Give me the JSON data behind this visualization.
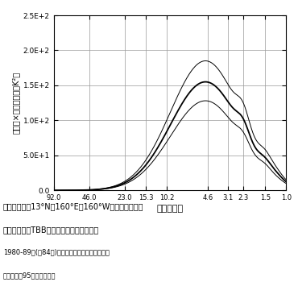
{
  "xlabel": "周期（日）",
  "ylabel": "周波数×パワー密度（K²）",
  "ylim": [
    0,
    250
  ],
  "yticks": [
    0,
    50,
    100,
    150,
    200,
    250
  ],
  "ytick_labels": [
    "0.0",
    "5.0E+1",
    "1.0E+2",
    "1.5E+2",
    "2.0E+2",
    "2.5E+2"
  ],
  "xtick_periods": [
    92.0,
    46.0,
    23.0,
    15.3,
    10.2,
    4.6,
    3.1,
    2.3,
    1.5,
    1.0
  ],
  "xtick_labels": [
    "92.0",
    "46.0",
    "23.0",
    "15.3",
    "10.2",
    "4.6",
    "3.1",
    "2.3",
    "1.5",
    "1.0"
  ],
  "bg_color": "#ffffff",
  "grid_color": "#999999",
  "peak_period": 4.8,
  "mean_peak": 155,
  "upper_peak": 185,
  "lower_peak": 128,
  "sigma_main": 0.68,
  "noise_periods": [
    2.3,
    1.5,
    1.2
  ],
  "mean_noise": [
    16,
    10,
    5
  ],
  "upper_noise": [
    22,
    14,
    7
  ],
  "lower_noise": [
    12,
    8,
    3
  ],
  "caption1": "図１　赤道～13°N，160°E～160°Wの領域で平均し",
  "caption2": "た６～８月のTBBのスペクトルパワー分布",
  "caption3": "1980-89年(除84年)の平均値。細線は９年平均操",
  "caption4": "作に対する95％信頼区間。"
}
